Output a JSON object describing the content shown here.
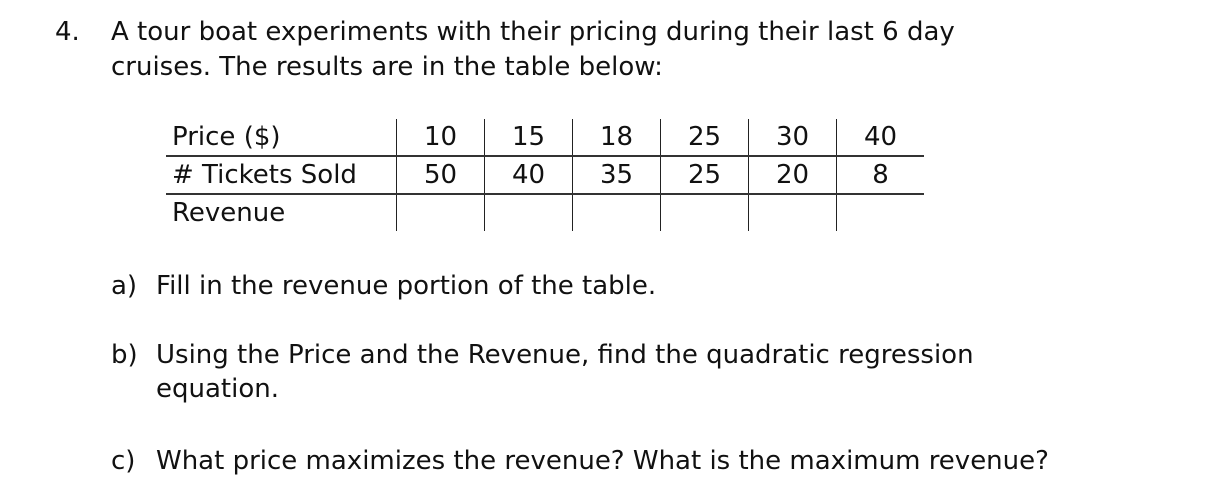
{
  "question": {
    "number": "4.",
    "line1": "A tour boat experiments with their pricing during their last 6 day",
    "line2": "cruises.  The results are in the table below:"
  },
  "table": {
    "rows": [
      {
        "label": "Price ($)",
        "values": [
          "10",
          "15",
          "18",
          "25",
          "30",
          "40"
        ]
      },
      {
        "label": "# Tickets Sold",
        "values": [
          "50",
          "40",
          "35",
          "25",
          "20",
          "8"
        ]
      },
      {
        "label": "Revenue",
        "values": [
          "",
          "",
          "",
          "",
          "",
          ""
        ]
      }
    ]
  },
  "parts": {
    "a": {
      "letter": "a)",
      "text": "Fill in the revenue portion of the table."
    },
    "b": {
      "letter": "b)",
      "line1": "Using the Price and the Revenue, find the quadratic regression",
      "line2": "equation."
    },
    "c": {
      "letter": "c)",
      "text": "What price maximizes the revenue?  What is the maximum revenue?"
    }
  }
}
